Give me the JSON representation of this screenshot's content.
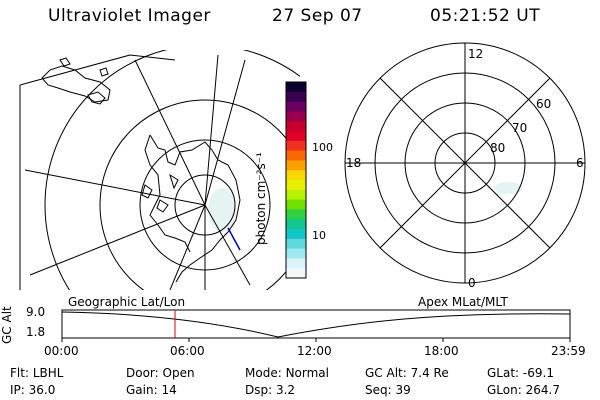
{
  "header": {
    "instrument": "Ultraviolet Imager",
    "date": "27 Sep 07",
    "time": "05:21:52 UT"
  },
  "colorbar": {
    "unit_label": "photon cm⁻²s⁻¹",
    "ticks": [
      "100",
      "10"
    ],
    "colors": [
      "#0b0030",
      "#3a0050",
      "#6a0060",
      "#9a0050",
      "#c8002c",
      "#e0002a",
      "#f03020",
      "#f86a00",
      "#fca000",
      "#f8d800",
      "#e8f000",
      "#b8f000",
      "#70e000",
      "#30d040",
      "#10c890",
      "#10c8c8",
      "#60d8e0",
      "#a0e8f0",
      "#d8f4f8",
      "#f0f8f8"
    ]
  },
  "left_panel": {
    "projection_label": "Geographic Lat/Lon"
  },
  "right_panel": {
    "coord_label": "Apex MLat/MLT",
    "mlt_labels": {
      "top": "12",
      "left": "18",
      "right": "6",
      "bottom": "0"
    },
    "lat_labels": [
      "60",
      "70",
      "80"
    ]
  },
  "timeline": {
    "ylabel": "GC Alt",
    "yticks": [
      "9.0",
      "1.8"
    ],
    "xticks": [
      "00:00",
      "06:00",
      "12:00",
      "18:00",
      "23:59"
    ],
    "current_time_marker": "05:21:52",
    "marker_color": "#e00000"
  },
  "status": {
    "row1": [
      {
        "label": "Flt:",
        "value": "LBHL"
      },
      {
        "label": "Door:",
        "value": "Open"
      },
      {
        "label": "Mode:",
        "value": "Normal"
      },
      {
        "label": "GC Alt:",
        "value": "7.4 Re"
      },
      {
        "label": "GLat:",
        "value": "-69.1"
      }
    ],
    "row2": [
      {
        "label": "IP:",
        "value": "36.0"
      },
      {
        "label": "Gain:",
        "value": "14"
      },
      {
        "label": "Dsp:",
        "value": "3.2"
      },
      {
        "label": "Seq:",
        "value": "39"
      },
      {
        "label": "GLon:",
        "value": "264.7"
      }
    ]
  }
}
